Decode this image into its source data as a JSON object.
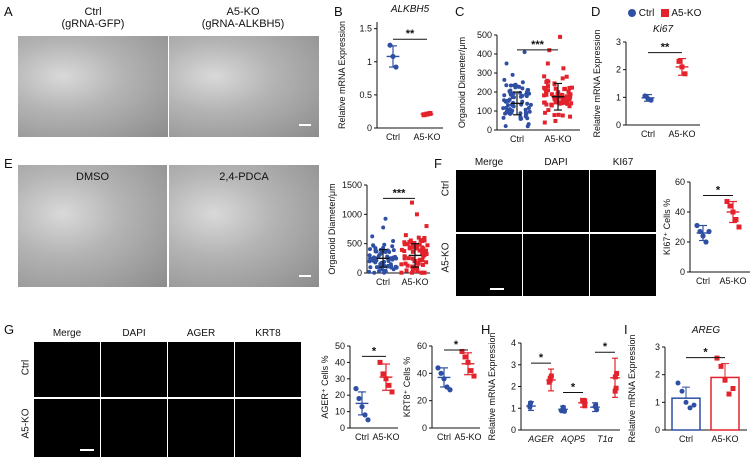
{
  "panels": {
    "A": {
      "label": "A",
      "ctrl_title": "Ctrl",
      "ctrl_sub": "(gRNA-GFP)",
      "ko_title": "A5-KO",
      "ko_sub": "(gRNA-ALKBH5)"
    },
    "E": {
      "label": "E",
      "left": "DMSO",
      "right": "2,4-PDCA"
    },
    "F": {
      "label": "F",
      "cols": [
        "Merge",
        "DAPI",
        "KI67"
      ],
      "rows": [
        "Ctrl",
        "A5-KO"
      ]
    },
    "G": {
      "label": "G",
      "cols": [
        "Merge",
        "DAPI",
        "AGER",
        "KRT8"
      ],
      "rows": [
        "Ctrl",
        "A5-KO"
      ]
    },
    "B": {
      "label": "B"
    },
    "C": {
      "label": "C"
    },
    "D": {
      "label": "D"
    },
    "H": {
      "label": "H"
    },
    "I": {
      "label": "I"
    }
  },
  "legend": {
    "ctrl": "Ctrl",
    "ko": "A5-KO",
    "ctrl_color": "#2e4fa3",
    "ko_color": "#e3232c"
  },
  "chart_data": [
    {
      "id": "B",
      "type": "scatter",
      "title": "ALKBH5",
      "ylabel": "Relative mRNA Expression",
      "categories": [
        "Ctrl",
        "A5-KO"
      ],
      "ylim": [
        0,
        1.6
      ],
      "yticks": [
        0.0,
        0.5,
        1.0,
        1.5
      ],
      "means": [
        1.08,
        0.21
      ],
      "sd": [
        0.16,
        0.01
      ],
      "points": [
        [
          1.25,
          1.08,
          0.92
        ],
        [
          0.2,
          0.21,
          0.22
        ]
      ],
      "sig": "**",
      "colors": [
        "#2e4fa3",
        "#e3232c"
      ]
    },
    {
      "id": "C",
      "type": "scatter",
      "title": "",
      "ylabel": "Organoid Diameter/μm",
      "categories": [
        "Ctrl",
        "A5-KO"
      ],
      "ylim": [
        0,
        500
      ],
      "yticks": [
        0,
        100,
        200,
        300,
        400,
        500
      ],
      "means": [
        140,
        175
      ],
      "sd": [
        60,
        70
      ],
      "sig": "***",
      "colors": [
        "#2e4fa3",
        "#e3232c"
      ]
    },
    {
      "id": "D",
      "type": "scatter",
      "title": "Ki67",
      "ylabel": "Relative mRNA Expression",
      "categories": [
        "Ctrl",
        "A5-KO"
      ],
      "ylim": [
        0,
        3
      ],
      "yticks": [
        0,
        1,
        2,
        3
      ],
      "means": [
        0.98,
        2.1
      ],
      "sd": [
        0.12,
        0.3
      ],
      "points": [
        [
          1.05,
          0.95,
          0.9
        ],
        [
          2.3,
          2.1,
          1.85
        ]
      ],
      "sig": "**",
      "colors": [
        "#2e4fa3",
        "#e3232c"
      ]
    },
    {
      "id": "E",
      "type": "scatter",
      "title": "",
      "ylabel": "Organoid Diameter/μm",
      "categories": [
        "Ctrl",
        "A5-KO"
      ],
      "ylim": [
        0,
        1500
      ],
      "yticks": [
        0,
        500,
        1000,
        1500
      ],
      "means": [
        250,
        300
      ],
      "sd": [
        150,
        200
      ],
      "sig": "***",
      "colors": [
        "#2e4fa3",
        "#e3232c"
      ]
    },
    {
      "id": "F",
      "type": "scatter",
      "title": "",
      "ylabel": "KI67⁺ Cells %",
      "categories": [
        "Ctrl",
        "A5-KO"
      ],
      "ylim": [
        0,
        60
      ],
      "yticks": [
        0,
        20,
        40,
        60
      ],
      "means": [
        26,
        40
      ],
      "sd": [
        5,
        7
      ],
      "points": [
        [
          31,
          27,
          24,
          20,
          27
        ],
        [
          47,
          44,
          40,
          35,
          30
        ]
      ],
      "sig": "*",
      "colors": [
        "#2e4fa3",
        "#e3232c"
      ]
    },
    {
      "id": "G1",
      "type": "scatter",
      "title": "",
      "ylabel": "AGER⁺ Cells %",
      "categories": [
        "Ctrl",
        "A5-KO"
      ],
      "ylim": [
        0,
        50
      ],
      "yticks": [
        0,
        10,
        20,
        30,
        40,
        50
      ],
      "means": [
        15,
        31
      ],
      "sd": [
        7,
        8
      ],
      "points": [
        [
          24,
          18,
          13,
          8,
          5
        ],
        [
          40,
          33,
          30,
          26,
          22
        ]
      ],
      "sig": "*",
      "colors": [
        "#2e4fa3",
        "#e3232c"
      ]
    },
    {
      "id": "G2",
      "type": "scatter",
      "title": "",
      "ylabel": "KRT8⁺ Cells %",
      "categories": [
        "Ctrl",
        "A5-KO"
      ],
      "ylim": [
        0,
        60
      ],
      "yticks": [
        0,
        20,
        40,
        60
      ],
      "means": [
        37,
        47
      ],
      "sd": [
        7,
        8
      ],
      "points": [
        [
          44,
          40,
          36,
          30,
          28
        ],
        [
          56,
          52,
          48,
          42,
          38
        ]
      ],
      "sig": "*",
      "colors": [
        "#2e4fa3",
        "#e3232c"
      ]
    },
    {
      "id": "H",
      "type": "scatter",
      "title": "",
      "ylabel": "Relative mRNA Expression",
      "categories": [
        "AGER",
        "AQP5",
        "T1α"
      ],
      "ylim": [
        0,
        4
      ],
      "yticks": [
        0,
        1,
        2,
        3,
        4
      ],
      "means": [
        [
          1.1,
          2.3
        ],
        [
          0.95,
          1.25
        ],
        [
          1.05,
          2.4
        ]
      ],
      "sd": [
        [
          0.2,
          0.5
        ],
        [
          0.15,
          0.2
        ],
        [
          0.2,
          0.9
        ]
      ],
      "sig": [
        "*",
        "*",
        "*"
      ],
      "colors": [
        "#2e4fa3",
        "#e3232c"
      ]
    },
    {
      "id": "I",
      "type": "bar",
      "title": "AREG",
      "ylabel": "Relative mRNA Expression",
      "categories": [
        "Ctrl",
        "A5-KO"
      ],
      "ylim": [
        0,
        3
      ],
      "yticks": [
        0,
        1,
        2,
        3
      ],
      "values": [
        1.15,
        1.9
      ],
      "sd": [
        0.4,
        0.5
      ],
      "points": [
        [
          1.7,
          1.4,
          1.0,
          0.8,
          0.9
        ],
        [
          2.6,
          2.3,
          1.8,
          1.3,
          1.5
        ]
      ],
      "sig": "*",
      "colors": [
        "#2e4fa3",
        "#e3232c"
      ]
    }
  ]
}
